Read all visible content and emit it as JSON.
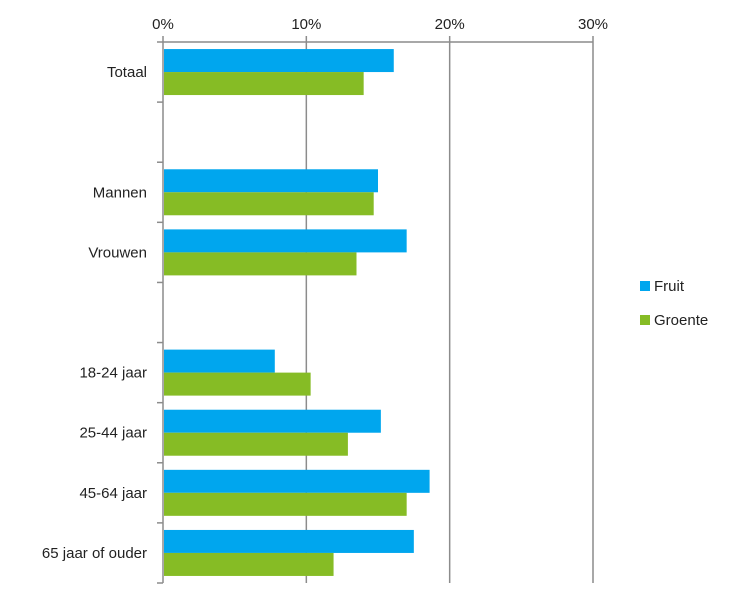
{
  "chart_data": {
    "type": "bar",
    "orientation": "horizontal",
    "x_axis_position": "top",
    "xlim": [
      0,
      30
    ],
    "x_unit": "%",
    "x_ticks": [
      "0%",
      "10%",
      "20%",
      "30%"
    ],
    "grid": true,
    "legend_position": "right",
    "rows": [
      {
        "label": "Totaal",
        "values": [
          16.1,
          14.0
        ]
      },
      {
        "label": "",
        "values": null
      },
      {
        "label": "Mannen",
        "values": [
          15.0,
          14.7
        ]
      },
      {
        "label": "Vrouwen",
        "values": [
          17.0,
          13.5
        ]
      },
      {
        "label": "",
        "values": null
      },
      {
        "label": "18-24 jaar",
        "values": [
          7.8,
          10.3
        ]
      },
      {
        "label": "25-44 jaar",
        "values": [
          15.2,
          12.9
        ]
      },
      {
        "label": "45-64 jaar",
        "values": [
          18.6,
          17.0
        ]
      },
      {
        "label": "65 jaar of ouder",
        "values": [
          17.5,
          11.9
        ]
      }
    ],
    "series": [
      {
        "name": "Fruit",
        "color": "#00a6ee"
      },
      {
        "name": "Groente",
        "color": "#86bc25"
      }
    ]
  }
}
